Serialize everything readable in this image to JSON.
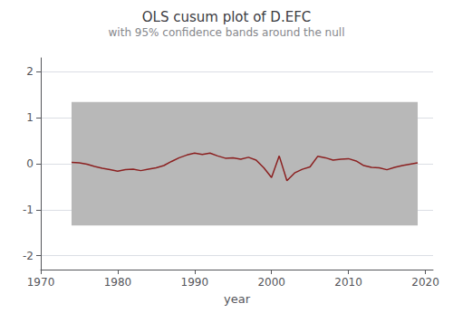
{
  "chart_data": {
    "type": "line",
    "title": "OLS cusum plot of D.EFC",
    "subtitle": "with 95% confidence bands around the null",
    "x_label": "year",
    "x": [
      1974,
      1975,
      1976,
      1977,
      1978,
      1979,
      1980,
      1981,
      1982,
      1983,
      1984,
      1985,
      1986,
      1987,
      1988,
      1989,
      1990,
      1991,
      1992,
      1993,
      1994,
      1995,
      1996,
      1997,
      1998,
      1999,
      2000,
      2001,
      2002,
      2003,
      2004,
      2005,
      2006,
      2007,
      2008,
      2009,
      2010,
      2011,
      2012,
      2013,
      2014,
      2015,
      2016,
      2017,
      2018,
      2019
    ],
    "values": [
      0.03,
      0.02,
      -0.01,
      -0.06,
      -0.1,
      -0.13,
      -0.16,
      -0.13,
      -0.12,
      -0.15,
      -0.12,
      -0.09,
      -0.04,
      0.05,
      0.13,
      0.19,
      0.23,
      0.2,
      0.23,
      0.17,
      0.12,
      0.13,
      0.1,
      0.14,
      0.08,
      -0.09,
      -0.3,
      0.17,
      -0.37,
      -0.2,
      -0.12,
      -0.07,
      0.16,
      0.13,
      0.08,
      0.1,
      0.11,
      0.06,
      -0.04,
      -0.08,
      -0.09,
      -0.13,
      -0.08,
      -0.04,
      -0.01,
      0.02
    ],
    "color": "#8b2020",
    "bands": [
      {
        "x": [
          1974,
          2019
        ],
        "y": [
          -1.34,
          1.34
        ],
        "color": "#b8b8b8"
      }
    ],
    "xlim": [
      1970,
      2021
    ],
    "xticks": [
      1970,
      1980,
      1990,
      2000,
      2010,
      2020
    ],
    "ylim": [
      -2.3,
      2.3
    ],
    "yticks": [
      -2,
      -1,
      0,
      1,
      2
    ],
    "grid": true
  }
}
